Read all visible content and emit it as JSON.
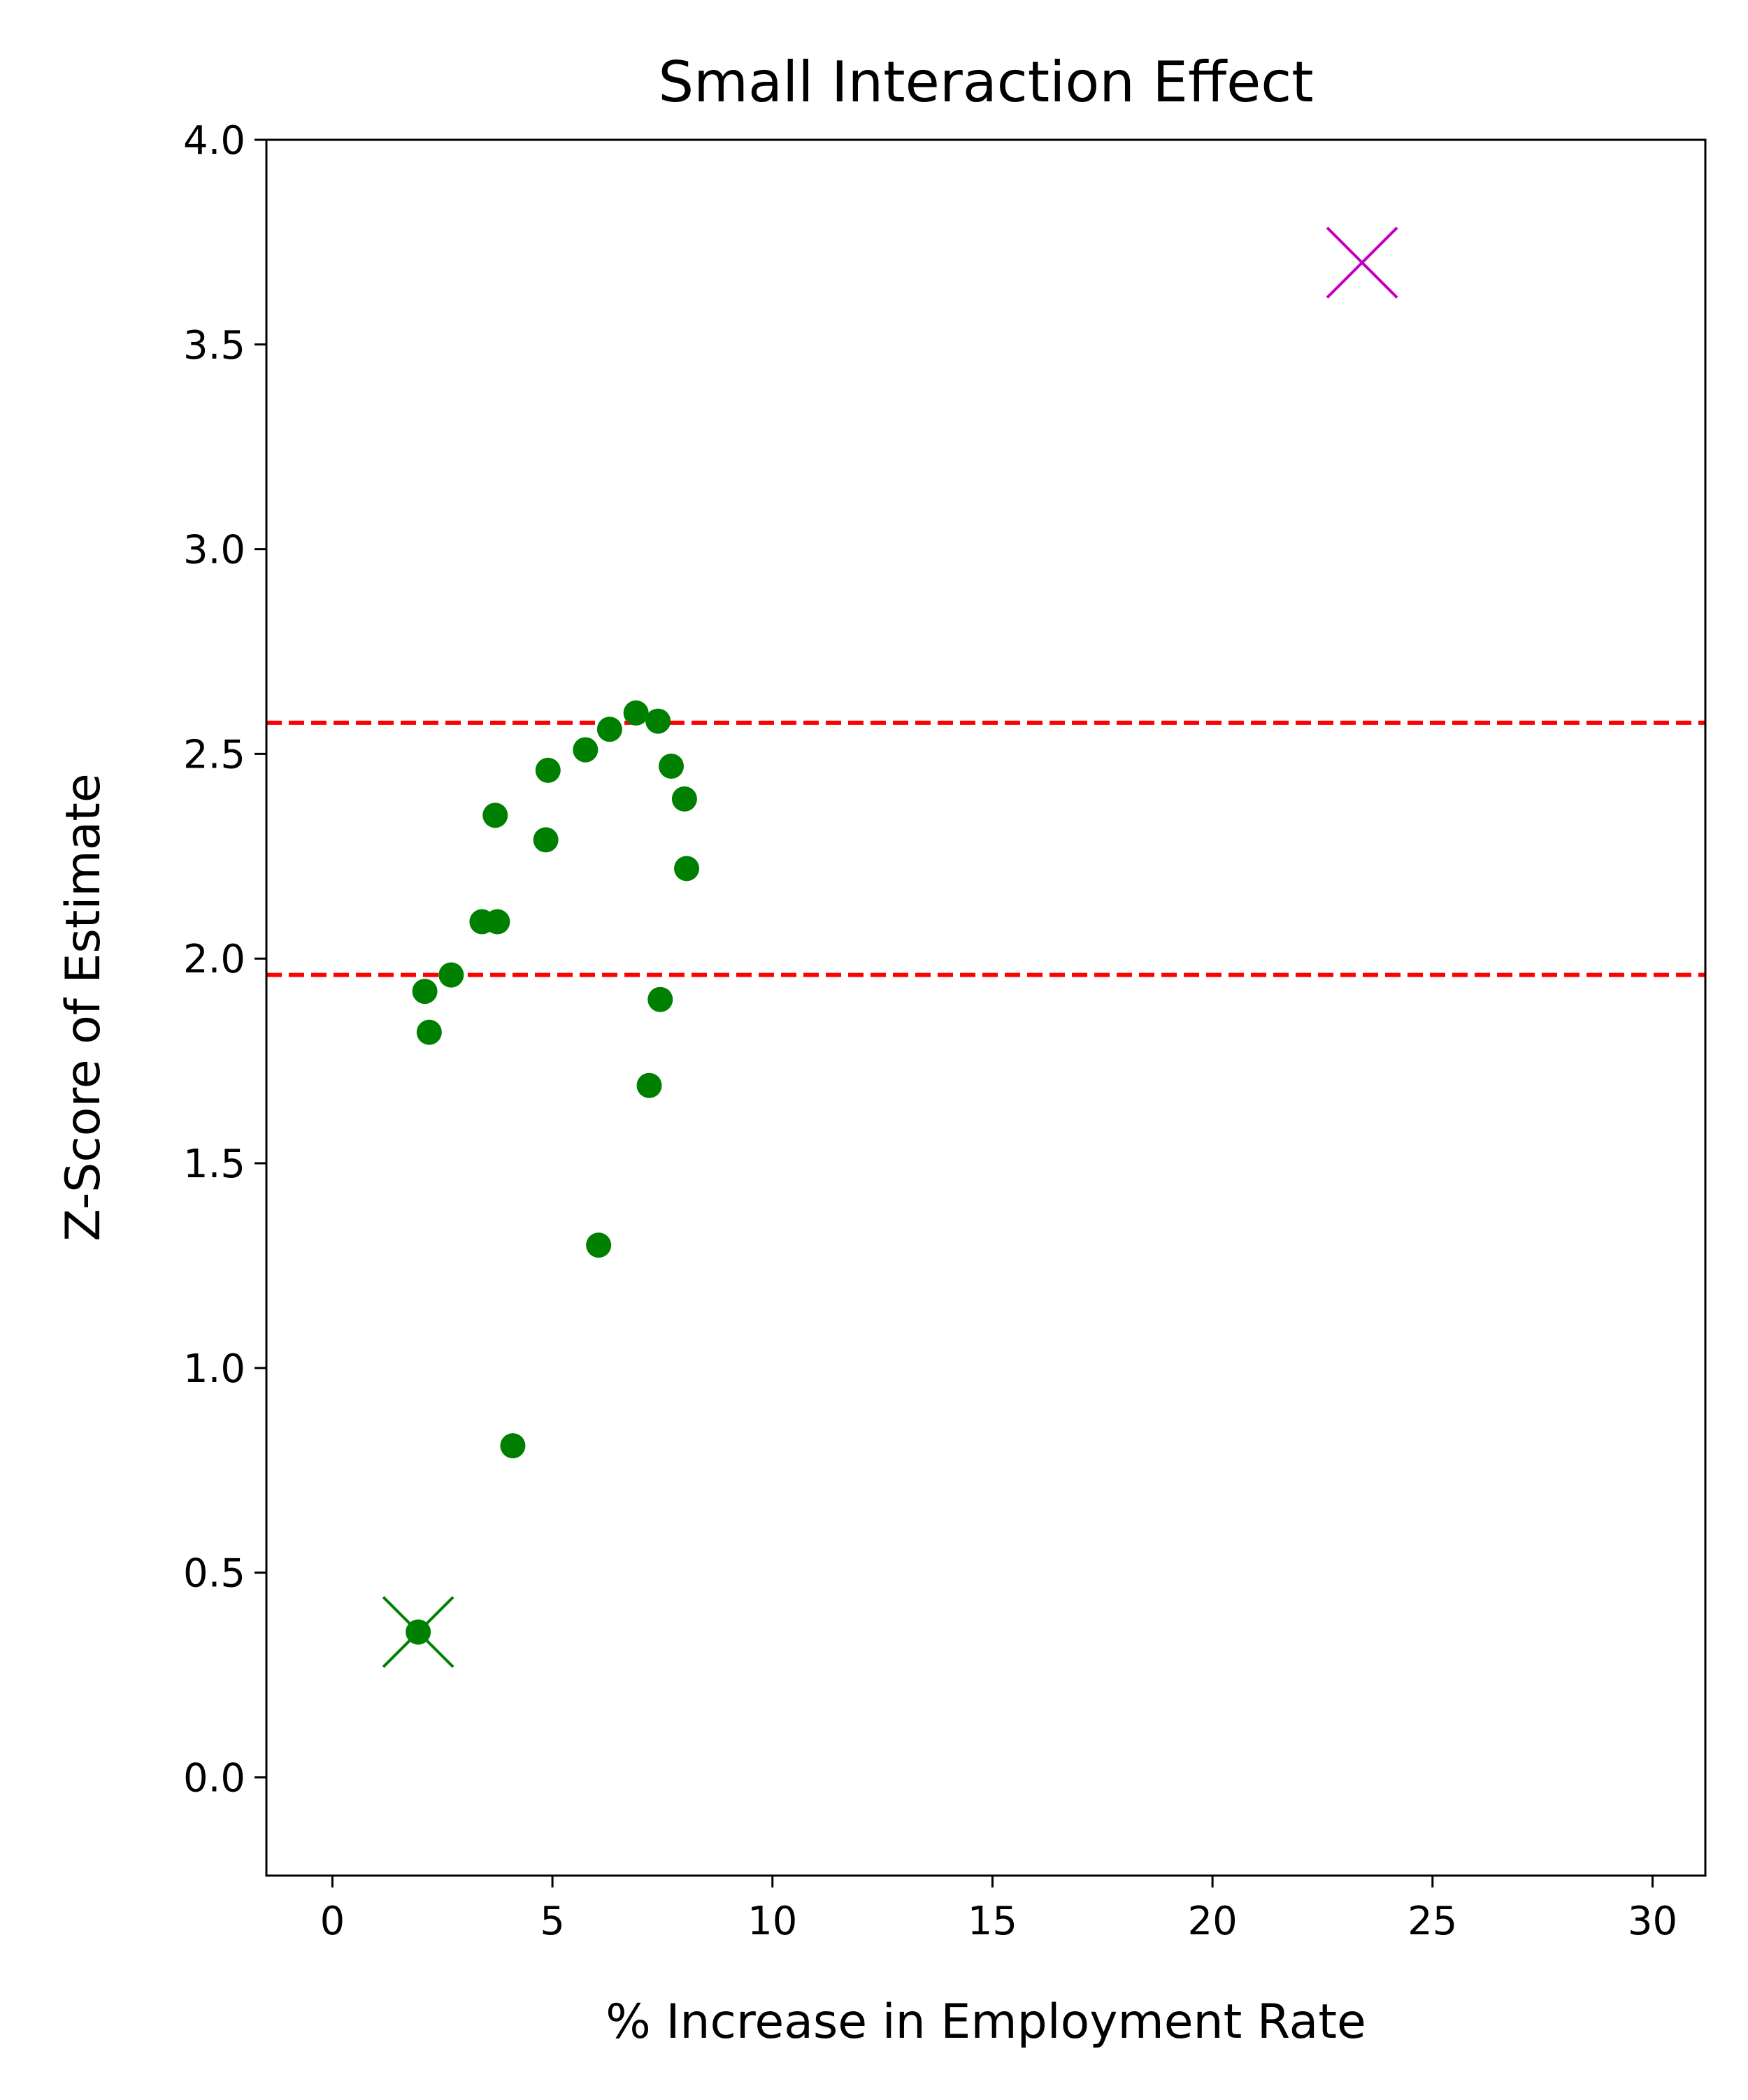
{
  "chart_data": {
    "type": "scatter",
    "title": "Small Interaction Effect",
    "xlabel": "% Increase in Employment Rate",
    "ylabel": "Z-Score of Estimate",
    "xlim": [
      -1.5,
      31.2
    ],
    "ylim": [
      -0.24,
      4.0
    ],
    "xticks": [
      0,
      5,
      10,
      15,
      20,
      25,
      30
    ],
    "xtick_labels": [
      "0",
      "5",
      "10",
      "15",
      "20",
      "25",
      "30"
    ],
    "yticks": [
      0.0,
      0.5,
      1.0,
      1.5,
      2.0,
      2.5,
      3.0,
      3.5,
      4.0
    ],
    "ytick_labels": [
      "0.0",
      "0.5",
      "1.0",
      "1.5",
      "2.0",
      "2.5",
      "3.0",
      "3.5",
      "4.0"
    ],
    "grid": false,
    "legend": false,
    "reference_lines": [
      {
        "orientation": "horizontal",
        "y": 1.96,
        "style": "dashed",
        "color": "#ff0000"
      },
      {
        "orientation": "horizontal",
        "y": 2.576,
        "style": "dashed",
        "color": "#ff0000"
      }
    ],
    "series": [
      {
        "marker": "circle",
        "color": "#008000",
        "points": [
          {
            "x": 2.1,
            "y": 1.92
          },
          {
            "x": 2.2,
            "y": 1.82
          },
          {
            "x": 2.7,
            "y": 1.96
          },
          {
            "x": 3.4,
            "y": 2.09
          },
          {
            "x": 3.7,
            "y": 2.35
          },
          {
            "x": 3.75,
            "y": 2.09
          },
          {
            "x": 4.1,
            "y": 0.81
          },
          {
            "x": 4.85,
            "y": 2.29
          },
          {
            "x": 4.9,
            "y": 2.46
          },
          {
            "x": 5.75,
            "y": 2.51
          },
          {
            "x": 6.05,
            "y": 1.3
          },
          {
            "x": 6.3,
            "y": 2.56
          },
          {
            "x": 6.9,
            "y": 2.6
          },
          {
            "x": 7.2,
            "y": 1.69
          },
          {
            "x": 7.4,
            "y": 2.58
          },
          {
            "x": 7.45,
            "y": 1.9
          },
          {
            "x": 7.7,
            "y": 2.47
          },
          {
            "x": 8.0,
            "y": 2.39
          },
          {
            "x": 8.05,
            "y": 2.22
          },
          {
            "x": 1.95,
            "y": 0.355
          }
        ]
      },
      {
        "marker": "x",
        "color": "#008000",
        "points": [
          {
            "x": 1.95,
            "y": 0.355
          }
        ]
      },
      {
        "marker": "x",
        "color": "#c000c0",
        "points": [
          {
            "x": 23.4,
            "y": 3.7
          }
        ]
      }
    ]
  }
}
